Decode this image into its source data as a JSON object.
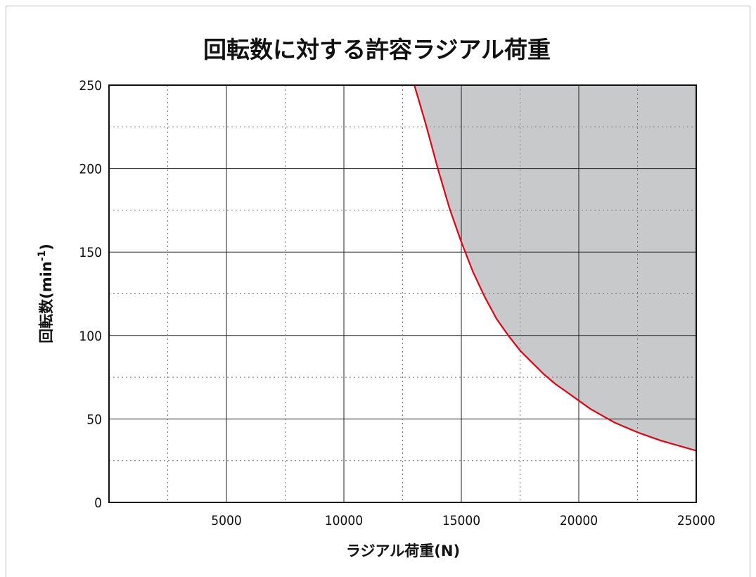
{
  "chart_data": {
    "type": "area",
    "title": "回転数に対する許容ラジアル荷重",
    "xlabel": "ラジアル荷重(N)",
    "ylabel_main": "回転数(min",
    "ylabel_sup": "-1",
    "ylabel_close": ")",
    "xlim": [
      0,
      25000
    ],
    "ylim": [
      0,
      250
    ],
    "x_ticks": [
      5000,
      10000,
      15000,
      20000,
      25000
    ],
    "y_ticks": [
      0,
      50,
      100,
      150,
      200,
      250
    ],
    "x_major_grid": [
      5000,
      10000,
      15000,
      20000
    ],
    "x_minor_grid": [
      2500,
      7500,
      12500,
      17500,
      22500
    ],
    "y_major_grid": [
      50,
      100,
      150,
      200
    ],
    "y_minor_grid": [
      25,
      75,
      125,
      175,
      225
    ],
    "grid": true,
    "series": [
      {
        "x": [
          13000,
          13500,
          14000,
          14500,
          15000,
          15500,
          16000,
          16500,
          17000,
          17500,
          18000,
          18500,
          19000,
          19500,
          20000,
          20500,
          21000,
          21500,
          22000,
          22500,
          23000,
          23500,
          24000,
          24500,
          25000
        ],
        "y": [
          250,
          226,
          200,
          176,
          156,
          138,
          123,
          110,
          100,
          91,
          84,
          77,
          71,
          66,
          61,
          56,
          52,
          48,
          45,
          42,
          39.5,
          37,
          35,
          33,
          31
        ]
      }
    ],
    "fill_region": "above-right of curve",
    "colors": {
      "curve": "#e60012",
      "fill": "#c8c9ca",
      "grid": "#222222",
      "minor_grid": "#777777"
    }
  }
}
